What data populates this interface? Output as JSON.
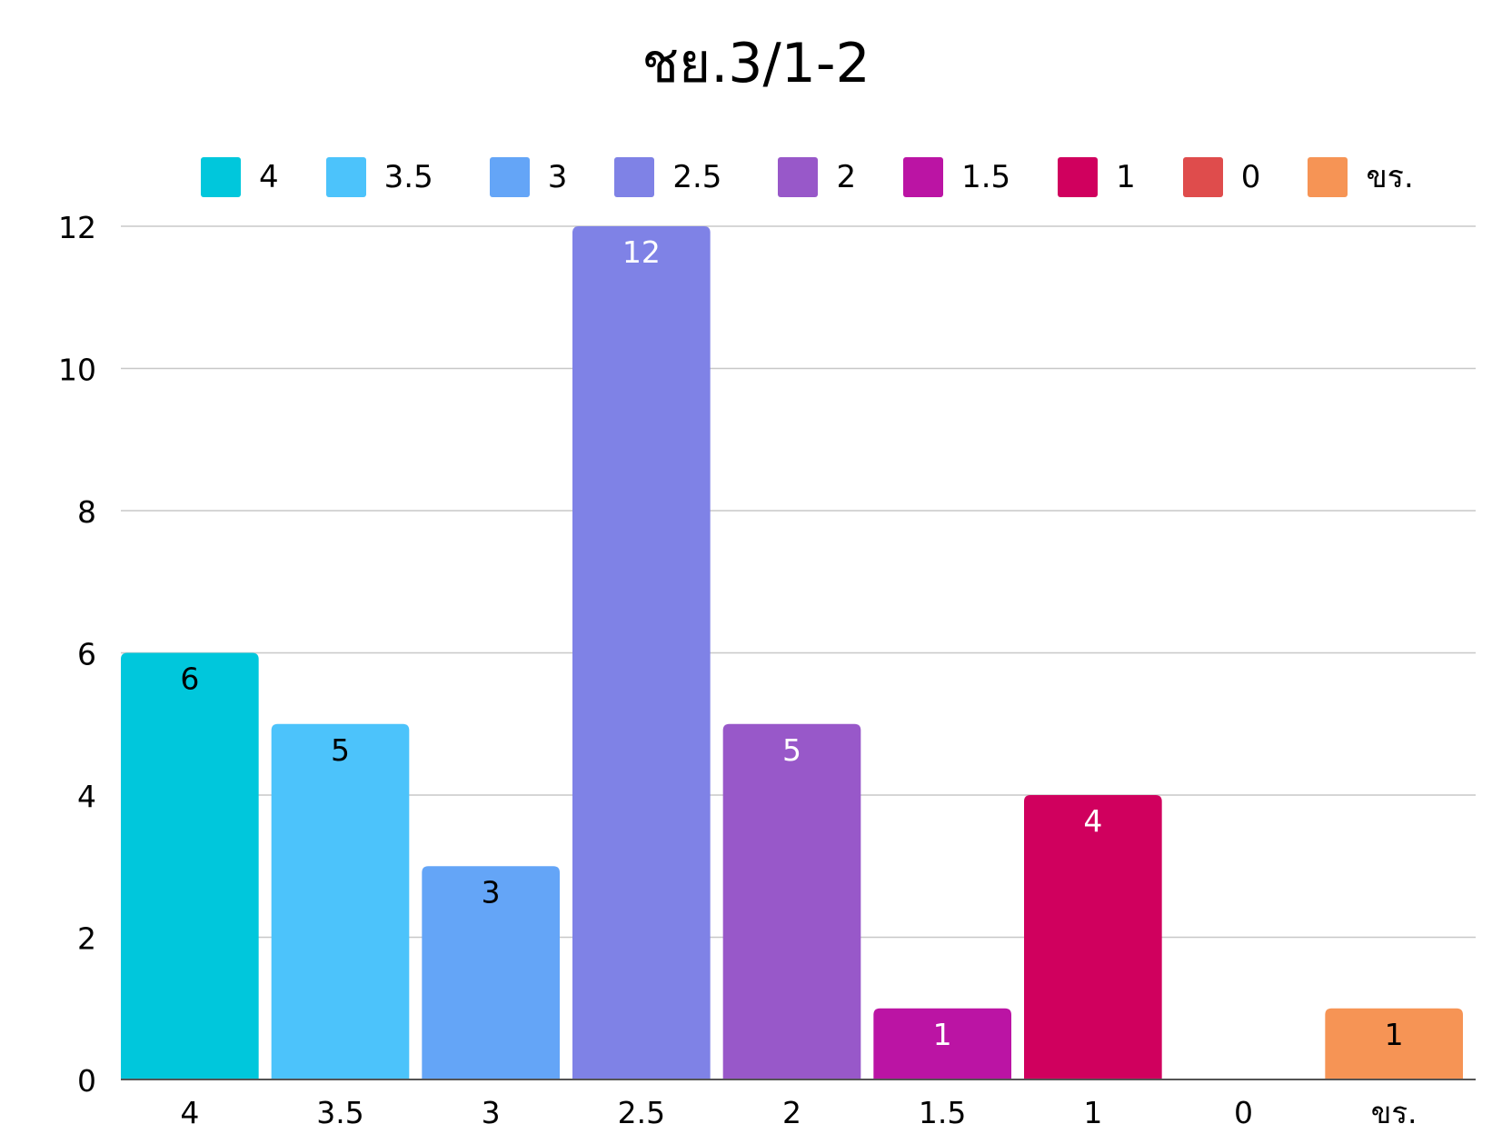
{
  "chart_data": {
    "type": "bar",
    "title": "ชย.3/1-2",
    "xlabel": "",
    "ylabel": "",
    "categories": [
      "4",
      "3.5",
      "3",
      "2.5",
      "2",
      "1.5",
      "1",
      "0",
      "ขร."
    ],
    "values": [
      6,
      5,
      3,
      12,
      5,
      1,
      4,
      0,
      1
    ],
    "colors": [
      "#00c7dc",
      "#4cc3fb",
      "#64a5f7",
      "#7f82e6",
      "#9858c9",
      "#bb14a4",
      "#d0005e",
      "#df4c4c",
      "#f69455"
    ],
    "value_label_colors": [
      "#000000",
      "#000000",
      "#000000",
      "#ffffff",
      "#ffffff",
      "#ffffff",
      "#ffffff",
      "#ffffff",
      "#000000"
    ],
    "ylim": [
      0,
      12
    ],
    "yticks": [
      0,
      2,
      4,
      6,
      8,
      10,
      12
    ],
    "grid": true,
    "legend_position": "top",
    "data_labels": true,
    "colors_gridline": "#c8c8c8"
  }
}
